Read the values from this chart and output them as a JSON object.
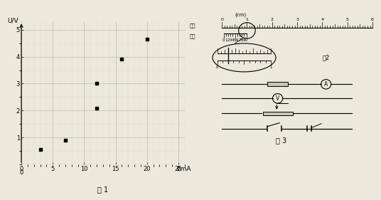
{
  "fig1": {
    "scatter_x": [
      3,
      7,
      12,
      12,
      16,
      20
    ],
    "scatter_y": [
      0.55,
      0.9,
      2.1,
      3.0,
      3.9,
      4.65
    ],
    "xlabel": "I/mA",
    "ylabel": "U/V",
    "xlim": [
      0,
      26
    ],
    "ylim": [
      0,
      5.3
    ],
    "xticks": [
      0,
      5,
      10,
      15,
      20,
      25
    ],
    "yticks": [
      1,
      2,
      3,
      4,
      5
    ],
    "caption": "图 1",
    "bg_color": "#ede8dc"
  },
  "fig2": {
    "cm_label": "(cm)",
    "main_label": "主尺",
    "vernier_label": "游标",
    "caption": "图2",
    "bg_color": "#ede8dc"
  },
  "fig3": {
    "caption": "图 3",
    "bg_color": "#ede8dc"
  },
  "bg_color": "#ede8dc"
}
